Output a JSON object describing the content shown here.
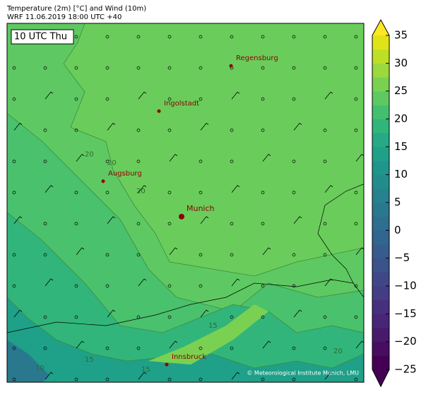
{
  "header": {
    "title": "Temperature (2m) [°C] and Wind (10m)",
    "subtitle": "WRF 11.06.2019 18:00 UTC +40"
  },
  "map": {
    "time_label": "10 UTC Thu",
    "cities": [
      {
        "name": "Regensburg"
      },
      {
        "name": "Ingolstadt"
      },
      {
        "name": "Augsburg"
      },
      {
        "name": "Munich"
      },
      {
        "name": "Innsbruck"
      }
    ],
    "contour_labels": [
      "20",
      "20",
      "20",
      "15",
      "15",
      "15",
      "20",
      "10"
    ],
    "credit": "© Meteorological Institute Munich, LMU"
  },
  "colorbar": {
    "lim": [
      -25,
      35
    ],
    "ticks": [
      {
        "value": -25,
        "label": "−25"
      },
      {
        "value": -20,
        "label": "−20"
      },
      {
        "value": -15,
        "label": "−15"
      },
      {
        "value": -10,
        "label": "−10"
      },
      {
        "value": -5,
        "label": "−5"
      },
      0,
      5,
      10,
      15,
      20,
      25,
      30,
      35
    ],
    "colors": [
      "#440154",
      "#470d60",
      "#481a6c",
      "#482576",
      "#46307e",
      "#433d84",
      "#3f4788",
      "#3b528b",
      "#365c8d",
      "#31668e",
      "#2e6e8e",
      "#2a788e",
      "#26828e",
      "#228c8d",
      "#1f958b",
      "#1fa088",
      "#26a984",
      "#31b57b",
      "#44bf70",
      "#5ec962",
      "#7ad151",
      "#9bd93c",
      "#bddf26",
      "#dfe318"
    ],
    "under_color": "#440154",
    "over_color": "#fde725"
  }
}
